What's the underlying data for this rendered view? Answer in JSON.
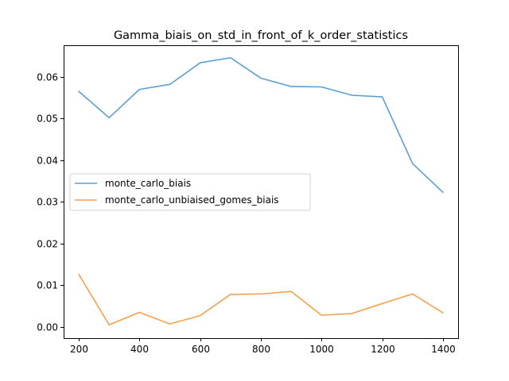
{
  "chart_data": {
    "type": "line",
    "title": "Gamma_biais_on_std_in_front_of_k_order_statistics",
    "xlabel": "",
    "ylabel": "",
    "x": [
      200,
      300,
      400,
      500,
      600,
      700,
      800,
      900,
      1000,
      1100,
      1200,
      1300,
      1400
    ],
    "xlim": [
      150,
      1450
    ],
    "ylim": [
      -0.0027,
      0.0676
    ],
    "xticks": [
      200,
      400,
      600,
      800,
      1000,
      1200,
      1400
    ],
    "yticks": [
      0.0,
      0.01,
      0.02,
      0.03,
      0.04,
      0.05,
      0.06
    ],
    "ytick_labels": [
      "0.00",
      "0.01",
      "0.02",
      "0.03",
      "0.04",
      "0.05",
      "0.06"
    ],
    "grid": false,
    "legend_position": "center-left",
    "series": [
      {
        "name": "monte_carlo_biais",
        "color": "#5a9fd0",
        "values": [
          0.0565,
          0.0502,
          0.057,
          0.0582,
          0.0634,
          0.0646,
          0.0597,
          0.0577,
          0.0576,
          0.0556,
          0.0552,
          0.0392,
          0.0323
        ]
      },
      {
        "name": "monte_carlo_unbiaised_gomes_biais",
        "color": "#f5a04a",
        "values": [
          0.0126,
          0.0005,
          0.0035,
          0.0007,
          0.0027,
          0.0078,
          0.0079,
          0.0085,
          0.0028,
          0.0032,
          0.0056,
          0.0079,
          0.0034
        ]
      }
    ]
  }
}
